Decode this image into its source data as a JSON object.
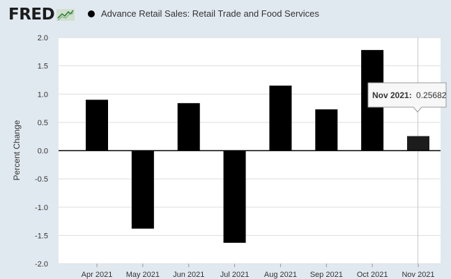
{
  "header": {
    "logo_text": "FRED",
    "series_title": "Advance Retail Sales: Retail Trade and Food Services"
  },
  "tooltip": {
    "label": "Nov 2021:",
    "value": "0.25682"
  },
  "colors": {
    "background": "#e1e9f0",
    "plot_background": "#ffffff",
    "bar": "#000000",
    "highlighted_bar": "#1c1c1c",
    "gridline": "#dddddd"
  },
  "chart_data": {
    "type": "bar",
    "title": "",
    "xlabel": "",
    "ylabel": "Percent Change",
    "categories": [
      "Apr 2021",
      "May 2021",
      "Jun 2021",
      "Jul 2021",
      "Aug 2021",
      "Sep 2021",
      "Oct 2021",
      "Nov 2021"
    ],
    "series": [
      {
        "name": "Advance Retail Sales: Retail Trade and Food Services",
        "values": [
          0.9,
          -1.38,
          0.84,
          -1.63,
          1.15,
          0.73,
          1.78,
          0.25682
        ]
      }
    ],
    "ylim": [
      -2.0,
      2.0
    ],
    "yticks": [
      "2.0",
      "1.5",
      "1.0",
      "0.5",
      "0.0",
      "-0.5",
      "-1.0",
      "-1.5",
      "-2.0"
    ],
    "ytick_values": [
      2.0,
      1.5,
      1.0,
      0.5,
      0.0,
      -0.5,
      -1.0,
      -1.5,
      -2.0
    ],
    "grid": true,
    "legend": "top-left"
  }
}
